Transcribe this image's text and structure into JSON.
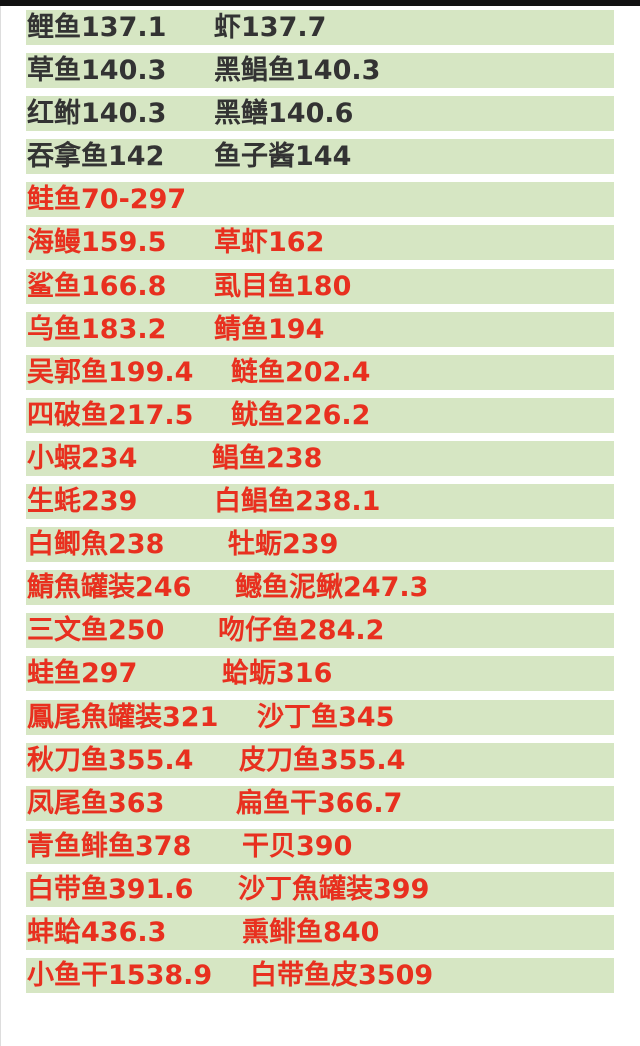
{
  "colors": {
    "row_background": "#d6e6c3",
    "dark_text": "#333333",
    "red_text": "#e8301f"
  },
  "rows": [
    {
      "color": "dark",
      "items": [
        "鲤鱼137.1",
        "虾137.7"
      ]
    },
    {
      "color": "dark",
      "items": [
        "草鱼140.3",
        "黑鲳鱼140.3"
      ]
    },
    {
      "color": "dark",
      "items": [
        "红鲋140.3",
        "黑鳝140.6"
      ]
    },
    {
      "color": "dark",
      "items": [
        "吞拿鱼142",
        "鱼子酱144"
      ]
    },
    {
      "color": "red",
      "items": [
        "鲑鱼70-297"
      ]
    },
    {
      "color": "red",
      "items": [
        "海鳗159.5",
        "草虾162"
      ]
    },
    {
      "color": "red",
      "items": [
        "鲨鱼166.8",
        "虱目鱼180"
      ]
    },
    {
      "color": "red",
      "items": [
        "乌鱼183.2",
        "鲭鱼194"
      ]
    },
    {
      "color": "red",
      "items": [
        "吴郭鱼199.4",
        "鲢鱼202.4"
      ]
    },
    {
      "color": "red",
      "items": [
        "四破鱼217.5",
        "鱿鱼226.2"
      ]
    },
    {
      "color": "red",
      "items": [
        "小蝦234",
        "鲳鱼238"
      ]
    },
    {
      "color": "red",
      "items": [
        "生蚝239",
        "白鲳鱼238.1"
      ]
    },
    {
      "color": "red",
      "items": [
        "白鲫魚238",
        "牡蛎239"
      ]
    },
    {
      "color": "red",
      "items": [
        "鯖魚罐装246",
        "鳡鱼泥鳅247.3"
      ]
    },
    {
      "color": "red",
      "items": [
        "三文鱼250",
        "吻仔鱼284.2"
      ]
    },
    {
      "color": "red",
      "items": [
        "蛙鱼297",
        "蛤蛎316"
      ]
    },
    {
      "color": "red",
      "items": [
        "鳳尾魚罐装321",
        "沙丁鱼345"
      ]
    },
    {
      "color": "red",
      "items": [
        "秋刀鱼355.4",
        "皮刀鱼355.4"
      ]
    },
    {
      "color": "red",
      "items": [
        "凤尾鱼363",
        "扁鱼干366.7"
      ]
    },
    {
      "color": "red",
      "items": [
        "青鱼鲱鱼378",
        "干贝390"
      ]
    },
    {
      "color": "red",
      "items": [
        "白带鱼391.6",
        "沙丁魚罐装399"
      ]
    },
    {
      "color": "red",
      "items": [
        "蚌蛤436.3",
        "熏鲱鱼840"
      ]
    },
    {
      "color": "red",
      "items": [
        "小鱼干1538.9",
        "白带鱼皮3509"
      ]
    }
  ]
}
